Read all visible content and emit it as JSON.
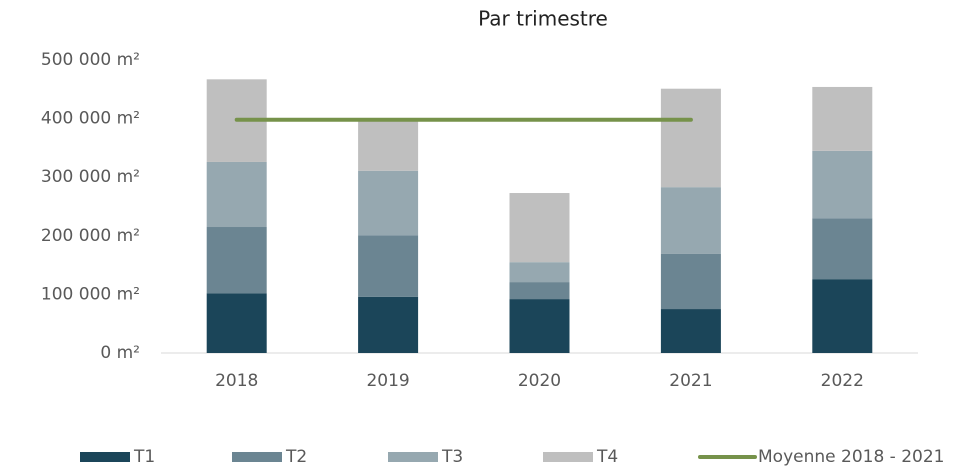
{
  "chart_data": {
    "type": "bar",
    "stacked": true,
    "title": "Par trimestre",
    "categories": [
      "2018",
      "2019",
      "2020",
      "2021",
      "2022"
    ],
    "series": [
      {
        "name": "T1",
        "color": "#1b4559",
        "values": [
          102000,
          96000,
          92000,
          75000,
          126000
        ]
      },
      {
        "name": "T2",
        "color": "#6b8592",
        "values": [
          113000,
          105000,
          29000,
          94000,
          104000
        ]
      },
      {
        "name": "T3",
        "color": "#96a8b0",
        "values": [
          111000,
          110000,
          34000,
          114000,
          115000
        ]
      },
      {
        "name": "T4",
        "color": "#bfbfbf",
        "values": [
          141000,
          90000,
          118000,
          168000,
          109000
        ]
      },
      {
        "name": "Moyenne 2018 - 2021",
        "type": "line",
        "color": "#76924a",
        "values": [
          398000,
          398000,
          398000,
          398000,
          null
        ]
      }
    ],
    "ylim": [
      0,
      500000
    ],
    "yticks": [
      {
        "value": 0,
        "label": "0 m²"
      },
      {
        "value": 100000,
        "label": "100 000 m²"
      },
      {
        "value": 200000,
        "label": "200 000 m²"
      },
      {
        "value": 300000,
        "label": "300 000 m²"
      },
      {
        "value": 400000,
        "label": "400 000 m²"
      },
      {
        "value": 500000,
        "label": "500 000 m²"
      }
    ],
    "legend": "bottom"
  }
}
